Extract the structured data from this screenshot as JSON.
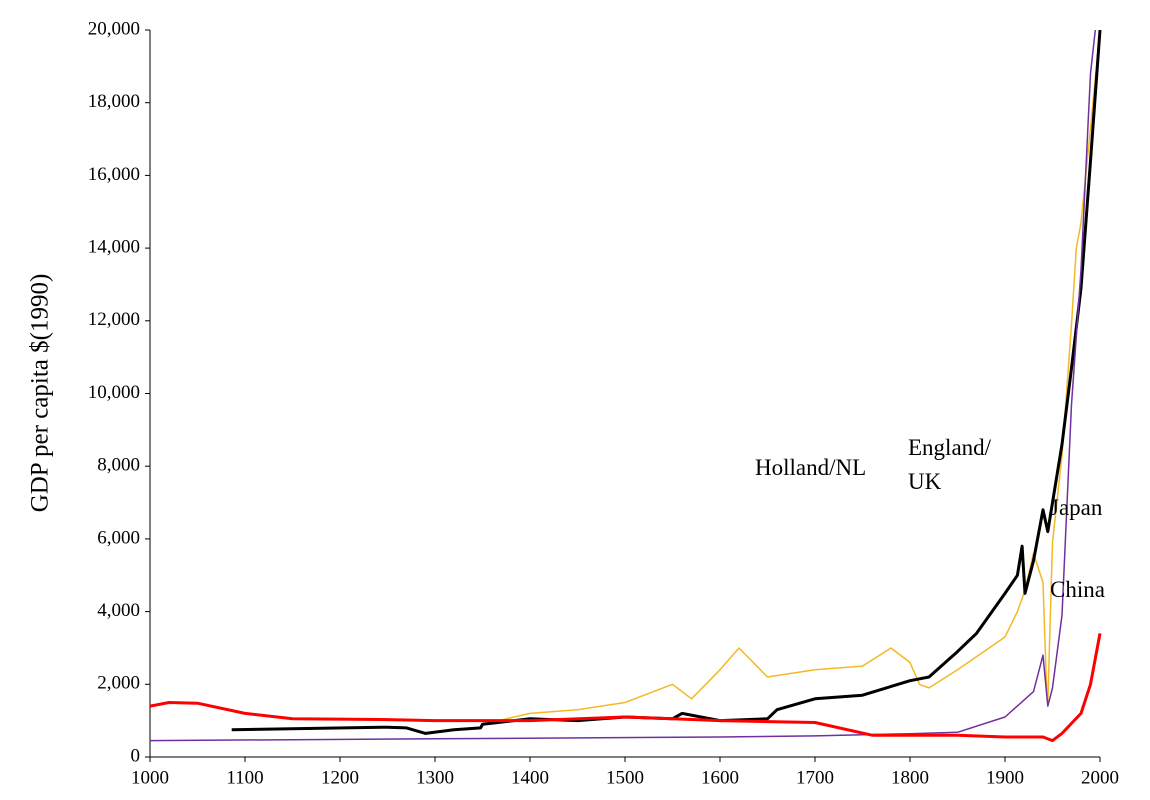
{
  "chart_data": {
    "type": "line",
    "y_label": "GDP per capita $(1990)",
    "xlim": [
      1000,
      2000
    ],
    "xticks": [
      1000,
      1100,
      1200,
      1300,
      1400,
      1500,
      1600,
      1700,
      1800,
      1900,
      2000
    ],
    "ylim": [
      0,
      20000
    ],
    "yticks": [
      0,
      {
        "value": 2000,
        "label": "2,000"
      },
      {
        "value": 4000,
        "label": "4,000"
      },
      {
        "value": 6000,
        "label": "6,000"
      },
      {
        "value": 8000,
        "label": "8,000"
      },
      {
        "value": 10000,
        "label": "10,000"
      },
      {
        "value": 12000,
        "label": "12,000"
      },
      {
        "value": 14000,
        "label": "14,000"
      },
      {
        "value": 16000,
        "label": "16,000"
      },
      {
        "value": 18000,
        "label": "18,000"
      },
      {
        "value": 20000,
        "label": "20,000"
      }
    ],
    "series": [
      {
        "name": "Holland/NL",
        "color": "#f4b824",
        "width": 1.5,
        "x": [
          1350,
          1400,
          1450,
          1500,
          1550,
          1570,
          1600,
          1620,
          1650,
          1700,
          1750,
          1780,
          1800,
          1810,
          1820,
          1850,
          1900,
          1913,
          1920,
          1930,
          1940,
          1944,
          1945,
          1950,
          1960,
          1970,
          1975,
          1980,
          1990,
          2000
        ],
        "values": [
          900,
          1200,
          1300,
          1500,
          2000,
          1600,
          2400,
          3000,
          2200,
          2400,
          2500,
          3000,
          2600,
          2000,
          1900,
          2400,
          3300,
          4000,
          4500,
          5600,
          4800,
          1700,
          1500,
          5900,
          8300,
          11900,
          14000,
          14700,
          17300,
          20000
        ]
      },
      {
        "name": "England/UK",
        "color": "#000000",
        "width": 3,
        "x": [
          1086,
          1250,
          1270,
          1290,
          1320,
          1348,
          1350,
          1400,
          1450,
          1500,
          1550,
          1560,
          1600,
          1650,
          1660,
          1700,
          1750,
          1800,
          1820,
          1850,
          1870,
          1900,
          1913,
          1918,
          1921,
          1930,
          1940,
          1945,
          1950,
          1960,
          1970,
          1980,
          1990,
          2000
        ],
        "values": [
          750,
          820,
          800,
          650,
          750,
          800,
          900,
          1050,
          1000,
          1100,
          1050,
          1200,
          1000,
          1050,
          1300,
          1600,
          1700,
          2100,
          2200,
          2900,
          3400,
          4500,
          5000,
          5800,
          4500,
          5400,
          6800,
          6200,
          7000,
          8600,
          10700,
          12900,
          16400,
          20000
        ]
      },
      {
        "name": "Japan",
        "color": "#7030a0",
        "width": 1.5,
        "x": [
          1000,
          1300,
          1600,
          1700,
          1800,
          1850,
          1900,
          1930,
          1940,
          1945,
          1950,
          1960,
          1970,
          1980,
          1990,
          1995
        ],
        "values": [
          450,
          500,
          550,
          580,
          640,
          680,
          1100,
          1800,
          2800,
          1400,
          1900,
          3900,
          9700,
          13400,
          18800,
          20000
        ]
      },
      {
        "name": "China",
        "color": "#ff0000",
        "width": 3,
        "x": [
          1000,
          1020,
          1050,
          1100,
          1150,
          1250,
          1300,
          1400,
          1500,
          1550,
          1600,
          1700,
          1760,
          1800,
          1850,
          1900,
          1940,
          1950,
          1960,
          1980,
          1990,
          2000
        ],
        "values": [
          1400,
          1500,
          1480,
          1200,
          1050,
          1030,
          1000,
          1000,
          1100,
          1050,
          1000,
          950,
          600,
          600,
          600,
          550,
          550,
          450,
          650,
          1200,
          2000,
          3400
        ]
      }
    ]
  }
}
